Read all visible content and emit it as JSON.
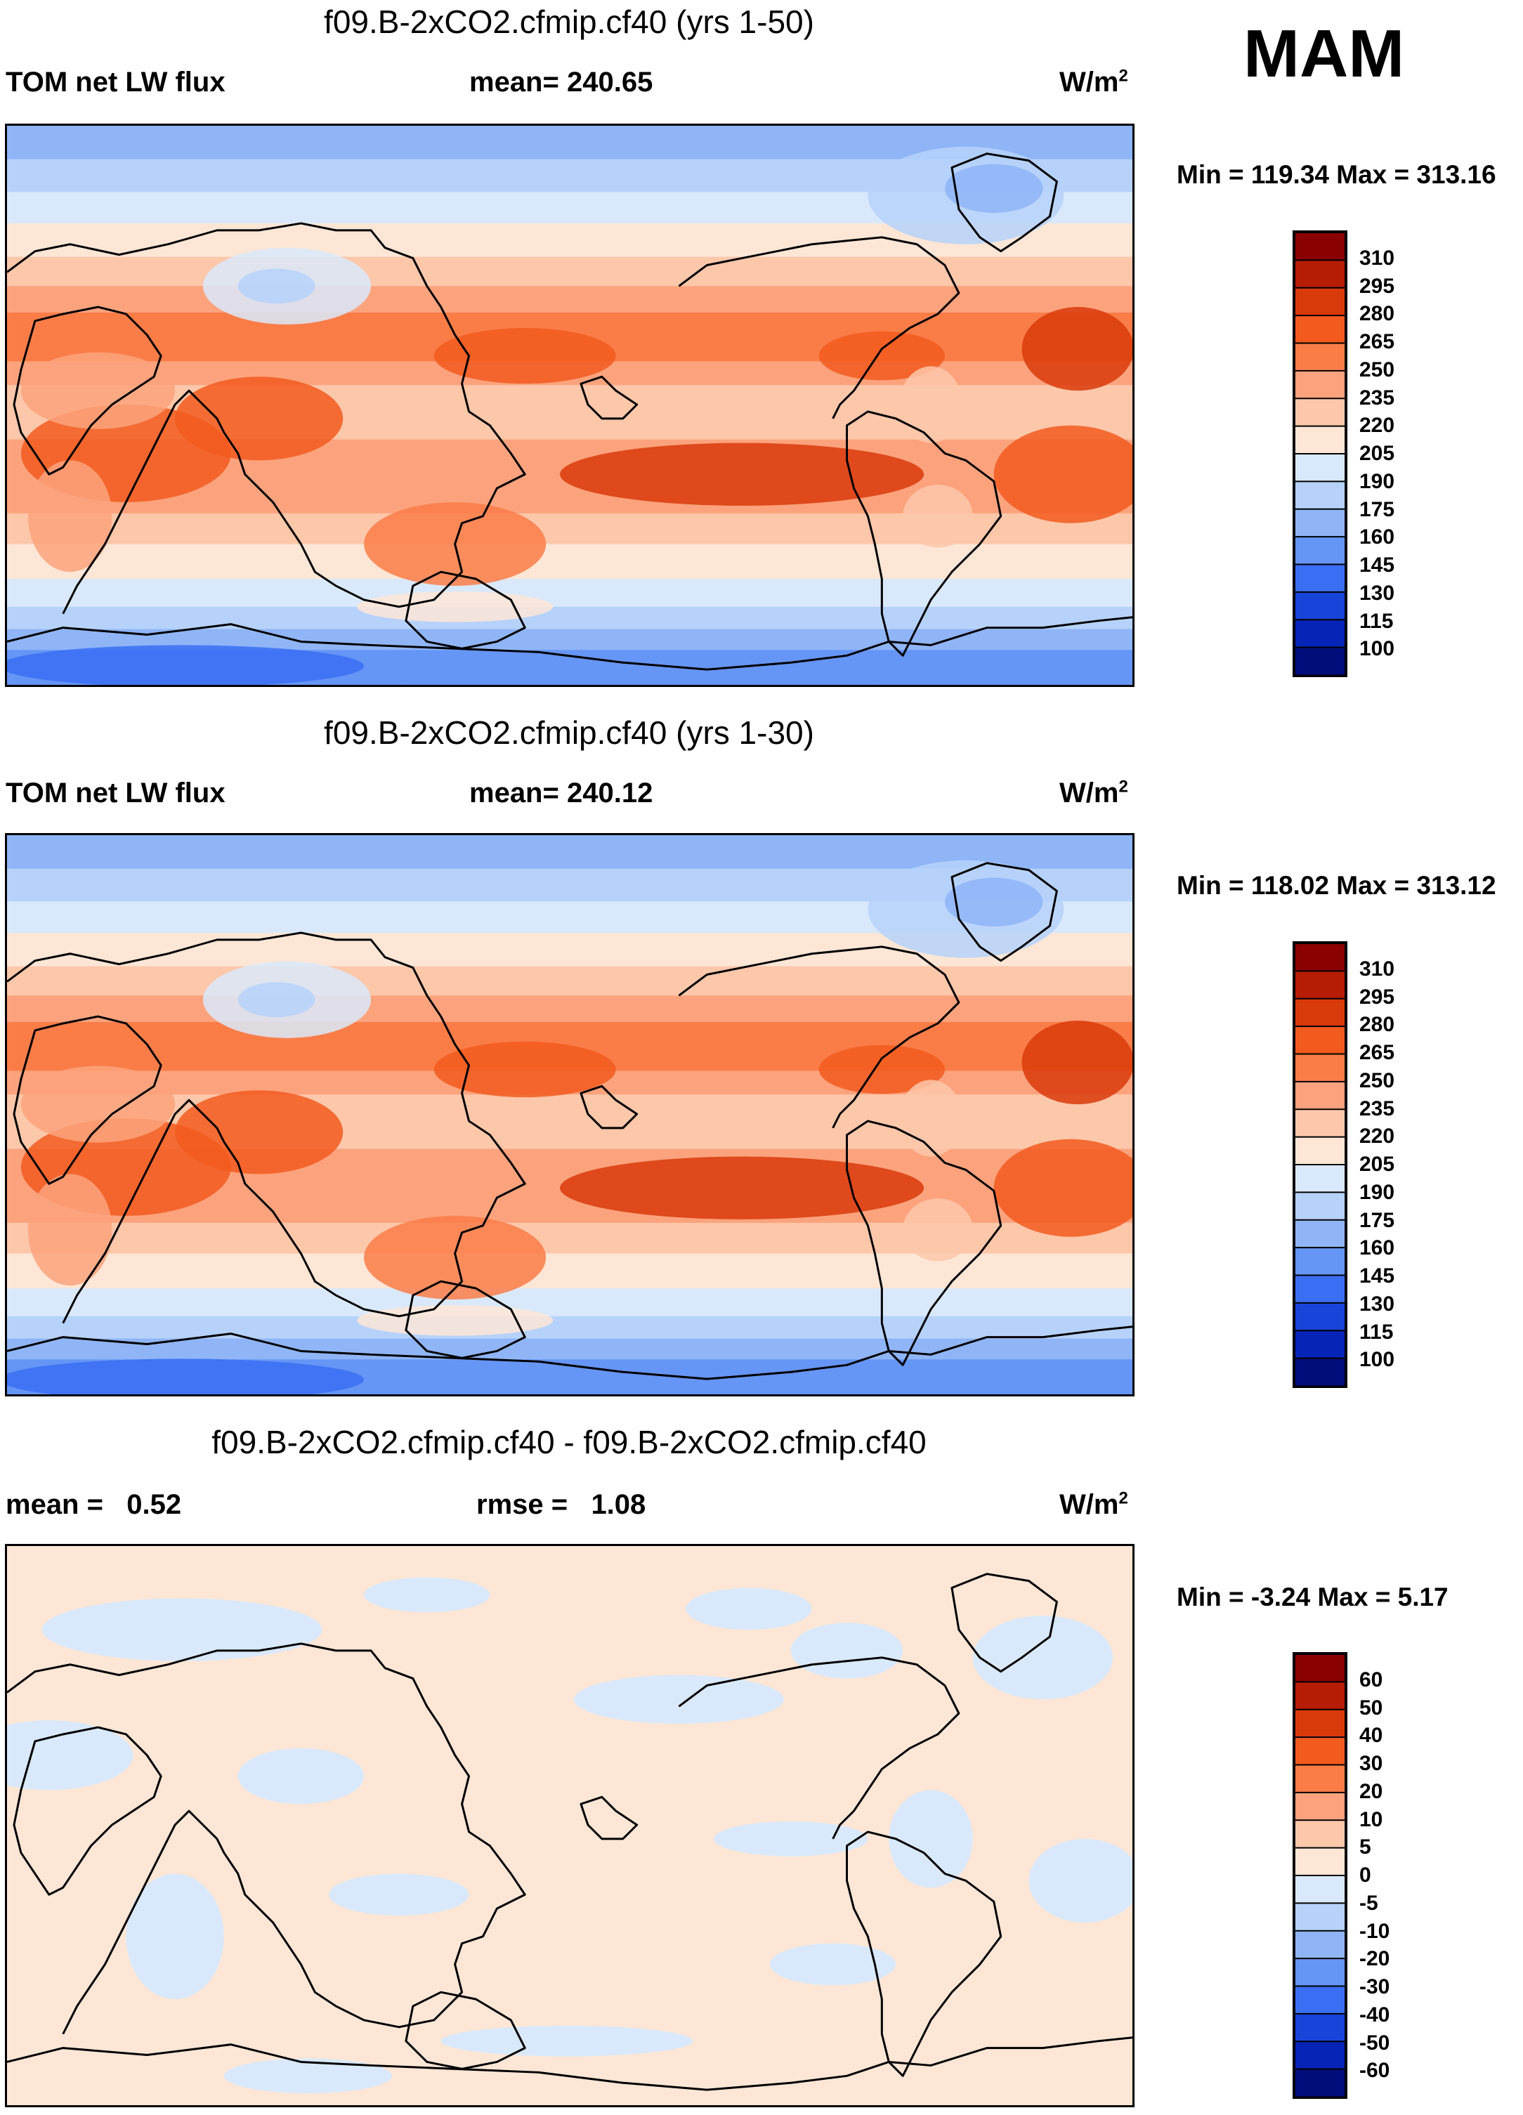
{
  "season": "MAM",
  "chart_data": [
    {
      "type": "heatmap",
      "title": "f09.B-2xCO2.cfmip.cf40 (yrs 1-50)",
      "left_label": "TOM net LW flux",
      "center_label": "mean= 240.65",
      "units": "W/m",
      "units_sup": "2",
      "min_max": "Min = 119.34 Max = 313.16",
      "mean": 240.65,
      "min": 119.34,
      "max": 313.16,
      "colorbar_ticks": [
        "310",
        "295",
        "280",
        "265",
        "250",
        "235",
        "220",
        "205",
        "190",
        "175",
        "160",
        "145",
        "130",
        "115",
        "100"
      ],
      "colorbar_colors": [
        "#8b0000",
        "#b71c05",
        "#d93a0a",
        "#f25a1e",
        "#fa7d48",
        "#fca37d",
        "#fdc7aa",
        "#fde6d6",
        "#d9e9fb",
        "#b6d2fa",
        "#8fb5f7",
        "#6595f5",
        "#3a6ef3",
        "#1744d9",
        "#0624b8",
        "#000d7a"
      ]
    },
    {
      "type": "heatmap",
      "title": "f09.B-2xCO2.cfmip.cf40 (yrs 1-30)",
      "left_label": "TOM net LW flux",
      "center_label": "mean= 240.12",
      "units": "W/m",
      "units_sup": "2",
      "min_max": "Min = 118.02 Max = 313.12",
      "mean": 240.12,
      "min": 118.02,
      "max": 313.12,
      "colorbar_ticks": [
        "310",
        "295",
        "280",
        "265",
        "250",
        "235",
        "220",
        "205",
        "190",
        "175",
        "160",
        "145",
        "130",
        "115",
        "100"
      ],
      "colorbar_colors": [
        "#8b0000",
        "#b71c05",
        "#d93a0a",
        "#f25a1e",
        "#fa7d48",
        "#fca37d",
        "#fdc7aa",
        "#fde6d6",
        "#d9e9fb",
        "#b6d2fa",
        "#8fb5f7",
        "#6595f5",
        "#3a6ef3",
        "#1744d9",
        "#0624b8",
        "#000d7a"
      ]
    },
    {
      "type": "heatmap",
      "title": "f09.B-2xCO2.cfmip.cf40 - f09.B-2xCO2.cfmip.cf40",
      "left_label": "mean =   0.52",
      "center_label": "rmse =   1.08",
      "units": "W/m",
      "units_sup": "2",
      "min_max": "Min =  -3.24 Max =   5.17",
      "mean": 0.52,
      "rmse": 1.08,
      "min": -3.24,
      "max": 5.17,
      "colorbar_ticks": [
        "60",
        "50",
        "40",
        "30",
        "20",
        "10",
        "5",
        "0",
        "-5",
        "-10",
        "-20",
        "-30",
        "-40",
        "-50",
        "-60"
      ],
      "colorbar_colors": [
        "#8b0000",
        "#b71c05",
        "#d93a0a",
        "#f25a1e",
        "#fa7d48",
        "#fca37d",
        "#fdc7aa",
        "#fde6d6",
        "#d9e9fb",
        "#b6d2fa",
        "#8fb5f7",
        "#6595f5",
        "#3a6ef3",
        "#1744d9",
        "#0624b8",
        "#000d7a"
      ]
    }
  ]
}
